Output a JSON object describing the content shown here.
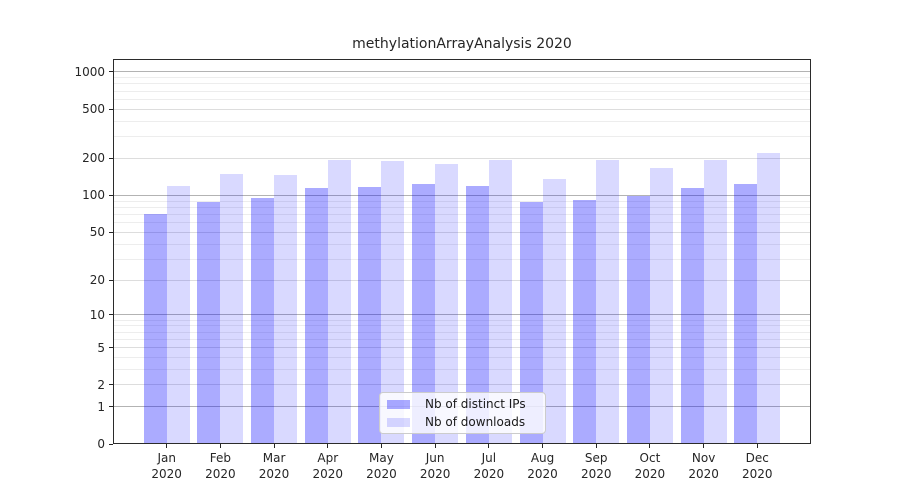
{
  "chart_data": {
    "type": "bar",
    "title": "methylationArrayAnalysis 2020",
    "categories": [
      "Jan 2020",
      "Feb 2020",
      "Mar 2020",
      "Apr 2020",
      "May 2020",
      "Jun 2020",
      "Jul 2020",
      "Aug 2020",
      "Sep 2020",
      "Oct 2020",
      "Nov 2020",
      "Dec 2020"
    ],
    "x_tick_months": [
      "Jan",
      "Feb",
      "Mar",
      "Apr",
      "May",
      "Jun",
      "Jul",
      "Aug",
      "Sep",
      "Oct",
      "Nov",
      "Dec"
    ],
    "x_tick_year": "2020",
    "series": [
      {
        "name": "Nb of distinct IPs",
        "color": "rgba(0,0,255,0.33)",
        "values": [
          70,
          89,
          95,
          116,
          117,
          125,
          119,
          88,
          92,
          100,
          115,
          123
        ]
      },
      {
        "name": "Nb of downloads",
        "color": "rgba(0,0,255,0.15)",
        "values": [
          120,
          150,
          148,
          195,
          190,
          181,
          196,
          137,
          194,
          167,
          193,
          220
        ]
      }
    ],
    "y_scale": "log10(1+v)",
    "y_ticks": [
      0,
      1,
      2,
      5,
      10,
      20,
      50,
      100,
      200,
      500,
      1000
    ],
    "ylim": [
      0,
      1273
    ],
    "grid": "on",
    "legend_position": "lower center",
    "colors": {
      "grid_major": "#b3b3b3",
      "grid_mid": "#dddddd",
      "grid_minor": "#ededed",
      "spine": "#2b2b2b",
      "text": "#262626"
    }
  }
}
